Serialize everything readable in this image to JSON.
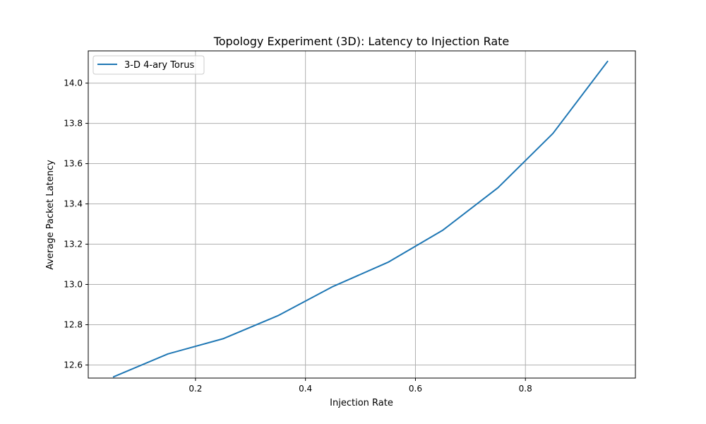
{
  "chart_data": {
    "type": "line",
    "title": "Topology Experiment (3D): Latency to Injection Rate",
    "xlabel": "Injection Rate",
    "ylabel": "Average Packet Latency",
    "xlim": [
      0.005,
      1.0
    ],
    "ylim": [
      12.535,
      14.16
    ],
    "xticks": [
      0.2,
      0.4,
      0.6,
      0.8
    ],
    "xtick_labels": [
      "0.2",
      "0.4",
      "0.6",
      "0.8"
    ],
    "yticks": [
      12.6,
      12.8,
      13.0,
      13.2,
      13.4,
      13.6,
      13.8,
      14.0
    ],
    "ytick_labels": [
      "12.6",
      "12.8",
      "13.0",
      "13.2",
      "13.4",
      "13.6",
      "13.8",
      "14.0"
    ],
    "grid": true,
    "legend": "top-left",
    "series": [
      {
        "name": "3-D 4-ary Torus",
        "color": "#1f77b4",
        "x": [
          0.05,
          0.15,
          0.25,
          0.35,
          0.45,
          0.55,
          0.65,
          0.75,
          0.85,
          0.95
        ],
        "y": [
          12.54,
          12.655,
          12.73,
          12.845,
          12.99,
          13.11,
          13.27,
          13.48,
          13.75,
          14.11
        ]
      }
    ]
  }
}
